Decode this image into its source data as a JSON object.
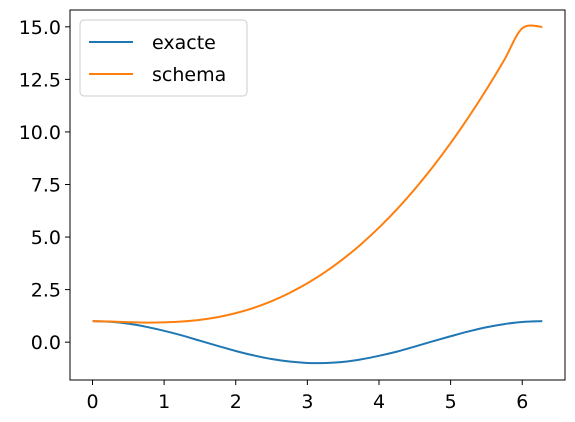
{
  "chart_data": {
    "type": "line",
    "title": "",
    "xlabel": "",
    "ylabel": "",
    "xlim": [
      -0.314,
      6.597
    ],
    "ylim": [
      -1.8,
      15.8
    ],
    "x_ticks": [
      0,
      1,
      2,
      3,
      4,
      5,
      6
    ],
    "x_tick_labels": [
      "0",
      "1",
      "2",
      "3",
      "4",
      "5",
      "6"
    ],
    "y_ticks": [
      0,
      2.5,
      5,
      7.5,
      10,
      12.5,
      15
    ],
    "y_tick_labels": [
      "0.0",
      "2.5",
      "5.0",
      "7.5",
      "10.0",
      "12.5",
      "15.0"
    ],
    "grid": false,
    "legend_position": "top-left",
    "series": [
      {
        "name": "exacte",
        "color": "#1f77b4",
        "x": [
          0,
          0.25,
          0.5,
          0.75,
          1.0,
          1.25,
          1.5,
          1.75,
          2.0,
          2.25,
          2.5,
          2.75,
          3.0,
          3.14,
          3.25,
          3.5,
          3.75,
          4.0,
          4.25,
          4.5,
          4.75,
          5.0,
          5.25,
          5.5,
          5.75,
          6.0,
          6.28
        ],
        "y": [
          1.0,
          0.97,
          0.88,
          0.73,
          0.54,
          0.32,
          0.07,
          -0.18,
          -0.42,
          -0.63,
          -0.8,
          -0.92,
          -0.99,
          -1.0,
          -0.99,
          -0.94,
          -0.82,
          -0.65,
          -0.45,
          -0.21,
          0.04,
          0.28,
          0.51,
          0.71,
          0.86,
          0.96,
          1.0
        ]
      },
      {
        "name": "schema",
        "color": "#ff7f0e",
        "x": [
          0,
          0.25,
          0.5,
          0.75,
          1.0,
          1.25,
          1.5,
          1.75,
          2.0,
          2.25,
          2.5,
          2.75,
          3.0,
          3.25,
          3.5,
          3.75,
          4.0,
          4.25,
          4.5,
          4.75,
          5.0,
          5.25,
          5.5,
          5.75,
          6.0,
          6.28
        ],
        "y": [
          1.0,
          0.98,
          0.95,
          0.93,
          0.94,
          0.98,
          1.06,
          1.19,
          1.38,
          1.63,
          1.95,
          2.34,
          2.8,
          3.34,
          3.96,
          4.66,
          5.45,
          6.32,
          7.28,
          8.33,
          9.47,
          10.7,
          12.02,
          13.43,
          14.93,
          15.0
        ]
      }
    ]
  }
}
